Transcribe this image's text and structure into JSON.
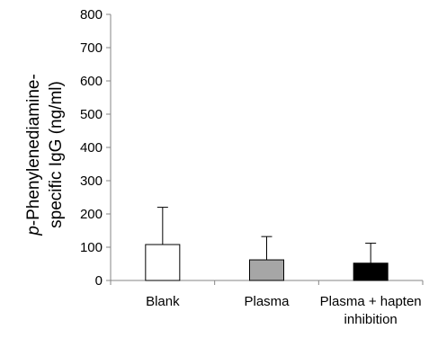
{
  "chart_data": {
    "type": "bar",
    "categories": [
      [
        "Blank"
      ],
      [
        "Plasma"
      ],
      [
        "Plasma + hapten",
        "inhibition"
      ]
    ],
    "values": [
      108,
      62,
      52
    ],
    "error_upper": [
      112,
      70,
      60
    ],
    "bar_fills": [
      "#ffffff",
      "#a6a6a6",
      "#000000"
    ],
    "ylabel_italic": "p",
    "ylabel_line1": "-Phenylenediamine-",
    "ylabel_line2": "specific IgG (ng/ml)",
    "xlabel": "",
    "title": "",
    "ylim": [
      0,
      800
    ],
    "yticks": [
      0,
      100,
      200,
      300,
      400,
      500,
      600,
      700,
      800
    ],
    "grid": false,
    "legend": "none"
  }
}
